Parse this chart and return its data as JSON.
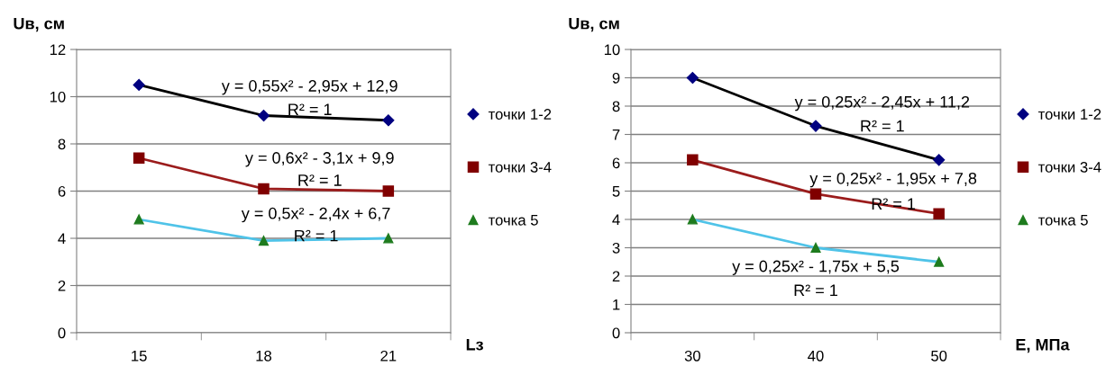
{
  "chart_data": [
    {
      "type": "scatter",
      "xlabel": "Lз",
      "ylabel": "Uв, см",
      "categories": [
        "15",
        "18",
        "21"
      ],
      "ylim": [
        0,
        12
      ],
      "yticks": [
        0,
        2,
        4,
        6,
        8,
        10,
        12
      ],
      "grid": "y",
      "legend": "right",
      "series": [
        {
          "type": "line",
          "color": "#000000",
          "values": [
            10.5,
            9.2,
            9.0
          ]
        },
        {
          "type": "line",
          "color": "#9b1c1c",
          "values": [
            7.4,
            6.1,
            6.0
          ]
        },
        {
          "type": "line",
          "color": "#4fc3e8",
          "values": [
            4.8,
            3.9,
            4.0
          ]
        },
        {
          "name": "точки 1-2",
          "color": "#000080",
          "marker": "diamond",
          "values": [
            10.5,
            9.2,
            9.0
          ]
        },
        {
          "name": "точки 3-4",
          "color": "#800000",
          "marker": "square",
          "values": [
            7.4,
            6.1,
            6.0
          ]
        },
        {
          "name": "точка 5",
          "color": "#1e7b1e",
          "marker": "triangle",
          "values": [
            4.8,
            3.9,
            4.0
          ]
        }
      ],
      "annotations": [
        "y = 0,55x² - 2,95x + 12,9",
        "R² = 1",
        "y = 0,6x² - 3,1x + 9,9",
        "R² = 1",
        "y = 0,5x² - 2,4x + 6,7",
        "R² = 1"
      ]
    },
    {
      "type": "scatter",
      "xlabel": "E, МПа",
      "ylabel": "Uв, см",
      "categories": [
        "30",
        "40",
        "50"
      ],
      "ylim": [
        0,
        10
      ],
      "yticks": [
        0,
        1,
        2,
        3,
        4,
        5,
        6,
        7,
        8,
        9,
        10
      ],
      "grid": "y",
      "legend": "right",
      "series": [
        {
          "type": "line",
          "color": "#000000",
          "values": [
            9.0,
            7.3,
            6.1
          ]
        },
        {
          "type": "line",
          "color": "#9b1c1c",
          "values": [
            6.1,
            4.9,
            4.2
          ]
        },
        {
          "type": "line",
          "color": "#4fc3e8",
          "values": [
            4.0,
            3.0,
            2.5
          ]
        },
        {
          "name": "точки 1-2",
          "color": "#000080",
          "marker": "diamond",
          "values": [
            9.0,
            7.3,
            6.1
          ]
        },
        {
          "name": "точки 3-4",
          "color": "#800000",
          "marker": "square",
          "values": [
            6.1,
            4.9,
            4.2
          ]
        },
        {
          "name": "точка 5",
          "color": "#1e7b1e",
          "marker": "triangle",
          "values": [
            4.0,
            3.0,
            2.5
          ]
        }
      ],
      "annotations": [
        "y = 0,25x² - 2,45x + 11,2",
        "R² = 1",
        "y = 0,25x² - 1,95x + 7,8",
        "R² = 1",
        "y = 0,25x² - 1,75x + 5,5",
        "R² = 1"
      ]
    }
  ]
}
